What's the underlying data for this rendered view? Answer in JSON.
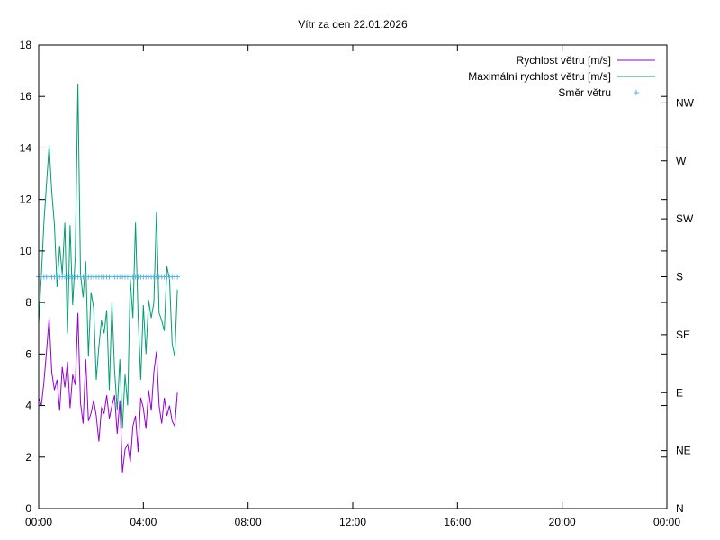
{
  "chart_data": {
    "type": "line",
    "title": "Vítr za den 22.01.2026",
    "xlabel": "",
    "ylabel": "",
    "grid": false,
    "legend": "top-right",
    "x_axis": {
      "range_hours": [
        0,
        24
      ],
      "tick_hours": [
        0,
        4,
        8,
        12,
        16,
        20,
        24
      ],
      "tick_labels": [
        "00:00",
        "04:00",
        "08:00",
        "12:00",
        "16:00",
        "20:00",
        "00:00"
      ]
    },
    "y_axis": {
      "range": [
        0,
        18
      ],
      "ticks": [
        0,
        2,
        4,
        6,
        8,
        10,
        12,
        14,
        16,
        18
      ],
      "tick_labels": [
        "0",
        "2",
        "4",
        "6",
        "8",
        "10",
        "12",
        "14",
        "16",
        "18"
      ]
    },
    "y2_axis": {
      "ticks": [
        0,
        2.25,
        4.5,
        6.75,
        9,
        11.25,
        13.5,
        15.75
      ],
      "tick_labels": [
        "N",
        "NE",
        "E",
        "SE",
        "S",
        "SW",
        "W",
        "NW"
      ]
    },
    "series": [
      {
        "name": "Rychlost větru [m/s]",
        "color": "#9400d3",
        "style": "line",
        "x_hours": [
          0.0,
          0.1,
          0.2,
          0.3,
          0.4,
          0.5,
          0.6,
          0.7,
          0.8,
          0.9,
          1.0,
          1.1,
          1.2,
          1.3,
          1.4,
          1.5,
          1.6,
          1.7,
          1.8,
          1.9,
          2.0,
          2.1,
          2.2,
          2.3,
          2.4,
          2.5,
          2.6,
          2.7,
          2.8,
          2.9,
          3.0,
          3.1,
          3.2,
          3.3,
          3.4,
          3.5,
          3.6,
          3.7,
          3.8,
          3.9,
          4.0,
          4.1,
          4.2,
          4.3,
          4.4,
          4.5,
          4.6,
          4.7,
          4.8,
          4.9,
          5.0,
          5.1,
          5.2,
          5.3
        ],
        "values": [
          4.3,
          4.0,
          4.9,
          6.1,
          7.4,
          5.3,
          4.6,
          5.0,
          3.8,
          5.5,
          4.7,
          5.7,
          3.9,
          5.2,
          4.8,
          7.6,
          4.1,
          3.3,
          5.8,
          3.4,
          3.7,
          4.2,
          3.6,
          2.6,
          3.9,
          3.7,
          4.4,
          3.5,
          4.0,
          4.4,
          2.9,
          4.2,
          1.4,
          2.3,
          2.5,
          1.8,
          3.2,
          3.6,
          2.2,
          4.3,
          3.9,
          3.1,
          4.6,
          3.8,
          5.3,
          6.1,
          4.0,
          3.3,
          4.3,
          3.6,
          4.0,
          3.4,
          3.2,
          4.5
        ]
      },
      {
        "name": "Maximální rychlost větru [m/s]",
        "color": "#009e73",
        "style": "line",
        "x_hours": [
          0.0,
          0.1,
          0.2,
          0.3,
          0.4,
          0.5,
          0.6,
          0.7,
          0.8,
          0.9,
          1.0,
          1.1,
          1.2,
          1.3,
          1.4,
          1.5,
          1.6,
          1.7,
          1.8,
          1.9,
          2.0,
          2.1,
          2.2,
          2.3,
          2.4,
          2.5,
          2.6,
          2.7,
          2.8,
          2.9,
          3.0,
          3.1,
          3.2,
          3.3,
          3.4,
          3.5,
          3.6,
          3.7,
          3.8,
          3.9,
          4.0,
          4.1,
          4.2,
          4.3,
          4.4,
          4.5,
          4.6,
          4.7,
          4.8,
          4.9,
          5.0,
          5.1,
          5.2,
          5.3
        ],
        "values": [
          7.2,
          9.0,
          11.1,
          12.6,
          14.1,
          12.3,
          11.0,
          8.6,
          10.2,
          9.1,
          11.1,
          6.8,
          11.0,
          7.9,
          9.8,
          16.5,
          9.1,
          8.2,
          9.6,
          5.9,
          8.4,
          7.8,
          5.0,
          6.3,
          7.3,
          6.8,
          7.7,
          4.6,
          8.0,
          5.4,
          3.8,
          5.8,
          3.1,
          5.2,
          4.0,
          8.9,
          7.4,
          11.1,
          7.5,
          5.0,
          7.9,
          6.0,
          8.1,
          7.4,
          8.0,
          11.5,
          7.6,
          7.3,
          6.9,
          9.4,
          8.9,
          6.4,
          5.9,
          8.5
        ]
      },
      {
        "name": "Směr větru",
        "color": "#56b4e9",
        "style": "points",
        "axis": "y2",
        "x_hours": [
          0.0,
          0.1,
          0.2,
          0.3,
          0.4,
          0.5,
          0.6,
          0.7,
          0.8,
          0.9,
          1.0,
          1.1,
          1.2,
          1.3,
          1.4,
          1.5,
          1.6,
          1.7,
          1.8,
          1.9,
          2.0,
          2.1,
          2.2,
          2.3,
          2.4,
          2.5,
          2.6,
          2.7,
          2.8,
          2.9,
          3.0,
          3.1,
          3.2,
          3.3,
          3.4,
          3.5,
          3.6,
          3.7,
          3.8,
          3.9,
          4.0,
          4.1,
          4.2,
          4.3,
          4.4,
          4.5,
          4.6,
          4.7,
          4.8,
          4.9,
          5.0,
          5.1,
          5.2,
          5.3
        ],
        "values": [
          9,
          9,
          9,
          9,
          9,
          9,
          9,
          9,
          9,
          9,
          9,
          9,
          9,
          9,
          9,
          9,
          9,
          9,
          9,
          9,
          9,
          9,
          9,
          9,
          9,
          9,
          9,
          9,
          9,
          9,
          9,
          9,
          9,
          9,
          9,
          9,
          9,
          9,
          9,
          9,
          9,
          9,
          9,
          9,
          9,
          9,
          9,
          9,
          9,
          9,
          9,
          9,
          9,
          9
        ]
      }
    ]
  }
}
